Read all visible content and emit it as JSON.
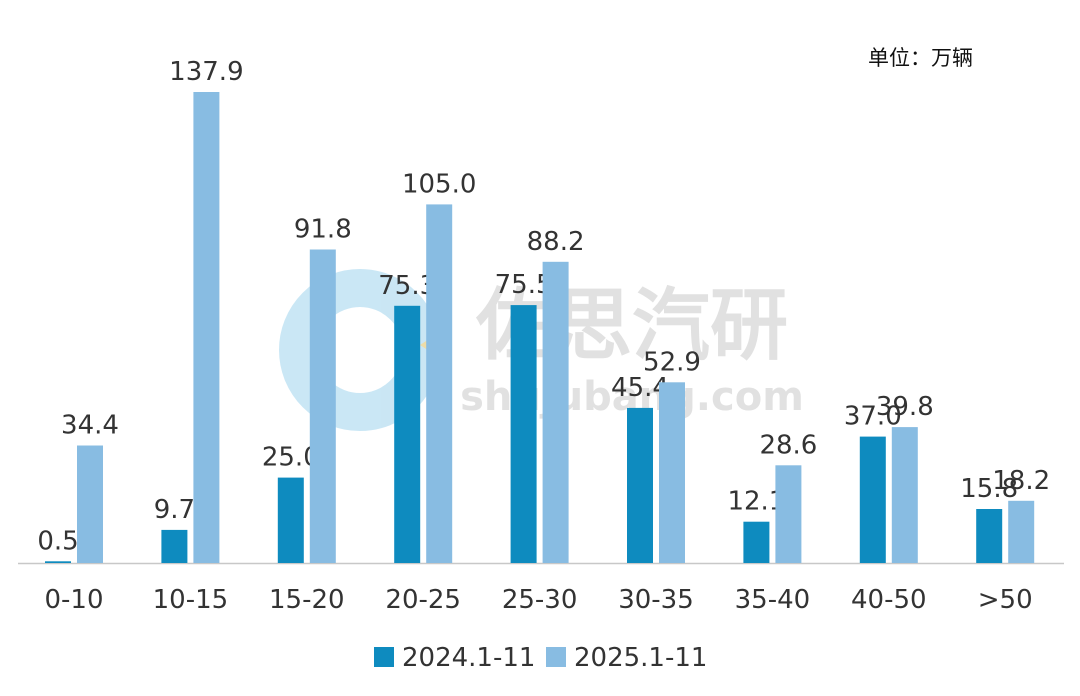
{
  "unit_label": "单位：万辆",
  "colors": {
    "series_2024": "#0E8BBF",
    "series_2025": "#88BCE2",
    "axis": "#C8C8C8",
    "label": "#333333",
    "watermark_circle": "#9FD3EC",
    "watermark_text": "#C9C9C9"
  },
  "watermark": {
    "brand": "佐思汽研",
    "domain": "shujubang.com"
  },
  "chart_data": {
    "type": "bar",
    "categories": [
      "0-10",
      "10-15",
      "15-20",
      "20-25",
      "25-30",
      "30-35",
      "35-40",
      "40-50",
      ">50"
    ],
    "series": [
      {
        "name": "2024.1-11",
        "values": [
          0.5,
          9.7,
          25.0,
          75.3,
          75.5,
          45.4,
          12.1,
          37.0,
          15.8
        ]
      },
      {
        "name": "2025.1-11",
        "values": [
          34.4,
          137.9,
          91.8,
          105.0,
          88.2,
          52.9,
          28.6,
          39.8,
          18.2
        ]
      }
    ],
    "ylim": [
      0,
      137.9
    ],
    "grid": false,
    "legend": "bottom-center"
  }
}
